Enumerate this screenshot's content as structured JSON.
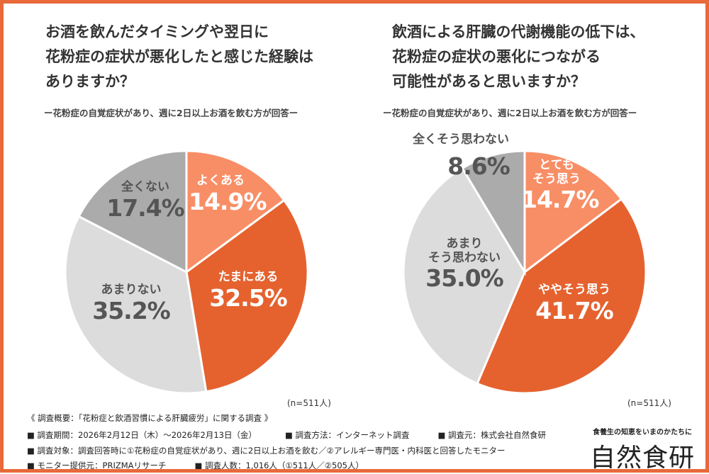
{
  "chart_data": [
    {
      "type": "pie",
      "title": "お酒を飲んだタイミングや翌日に\n花粉症の症状が悪化したと感じた経験は\nありますか？",
      "subtitle": "ー花粉症の自覚症状があり、週に2日以上お酒を飲む方が回答ー",
      "n_label": "(n=511人)",
      "slices": [
        {
          "label": "よくある",
          "value": 14.9,
          "pct": "14.9%",
          "color": "#F88E66"
        },
        {
          "label": "たまにある",
          "value": 32.5,
          "pct": "32.5%",
          "color": "#E5622F"
        },
        {
          "label": "あまりない",
          "value": 35.2,
          "pct": "35.2%",
          "color": "#DCDCDC"
        },
        {
          "label": "全くない",
          "value": 17.4,
          "pct": "17.4%",
          "color": "#ABABAB"
        }
      ]
    },
    {
      "type": "pie",
      "title": "飲酒による肝臓の代謝機能の低下は、\n花粉症の症状の悪化につながる\n可能性があると思いますか？",
      "subtitle": "ー花粉症の自覚症状があり、週に2日以上お酒を飲む方が回答ー",
      "n_label": "(n=511人)",
      "slices": [
        {
          "label": "とても\nそう思う",
          "value": 14.7,
          "pct": "14.7%",
          "color": "#F88E66"
        },
        {
          "label": "ややそう思う",
          "value": 41.7,
          "pct": "41.7%",
          "color": "#E5622F"
        },
        {
          "label": "あまり\nそう思わない",
          "value": 35.0,
          "pct": "35.0%",
          "color": "#DCDCDC"
        },
        {
          "label": "全くそう思わない",
          "value": 8.6,
          "pct": "8.6%",
          "color": "#ABABAB"
        }
      ]
    }
  ],
  "footer": {
    "heading": "《 調査概要：「花粉症と飲酒習慣による肝臓疲労」に関する調査 》",
    "period": "■ 調査期間：2026年2月12日（木）～2026年2月13日（金）",
    "method": "■ 調査方法：インターネット調査",
    "source": "■ 調査元：株式会社自然食研",
    "target": "■ 調査対象：調査回答時に①花粉症の自覚症状があり、週に2日以上お酒を飲む／②アレルギー専門医・内科医と回答したモニター",
    "provider": "■ モニター提供元：PRIZMAリサーチ",
    "count": "■ 調査人数：1,016人（①511人／②505人）"
  },
  "brand": {
    "tagline": "食養生の知恵をいまのかたちに",
    "name": "自然食研"
  }
}
